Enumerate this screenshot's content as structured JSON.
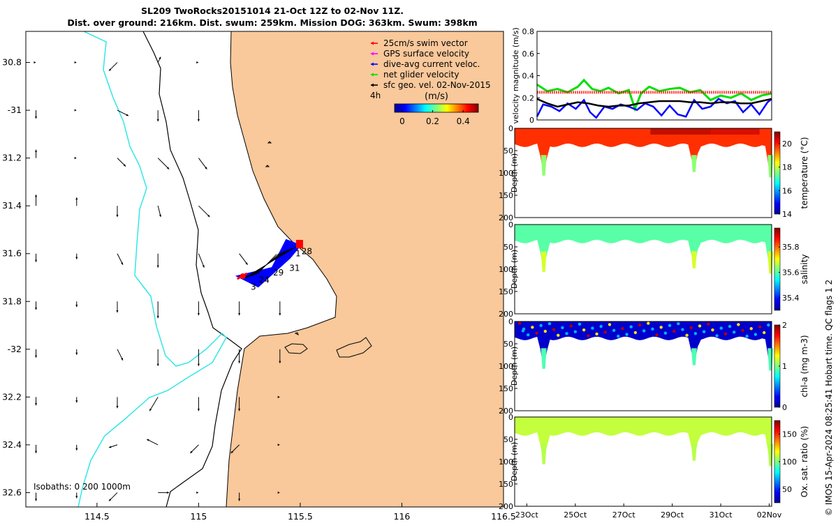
{
  "title_line1": "SL209 TwoRocks20151014 21-Oct 12Z to 02-Nov 11Z.",
  "title_line2": "Dist. over ground: 216km. Dist. swum: 259km. Mission DOG: 363km. Swum: 398km",
  "credit": "© IMOS 15-Apr-2024 08:25:41 Hobart time. QC flags 1  2",
  "colors": {
    "land": "#f9c89b",
    "isobath_0": "#000000",
    "isobath_200": "#000000",
    "isobath_1000": "#33e6e6",
    "track": "#0000ff",
    "swim_vector": "#ff0000",
    "gps_velocity": "#ff00ff",
    "dive_avg": "#0000ff",
    "net_glider": "#00e000",
    "sfc_geo": "#000000"
  },
  "chart_data": [
    {
      "type": "map",
      "xlim": [
        114.15,
        116.5
      ],
      "ylim": [
        -32.66,
        -30.67
      ],
      "x_ticks": [
        114.5,
        115,
        115.5,
        116,
        116.5
      ],
      "x_tick_labels": [
        "114.5",
        "115",
        "115.5",
        "116",
        "116.5"
      ],
      "y_ticks": [
        30.8,
        31,
        31.2,
        31.4,
        31.6,
        31.8,
        32,
        32.2,
        32.4,
        32.6
      ],
      "y_tick_labels": [
        "30.8",
        "-31",
        "31.2",
        "31.4",
        "31.6",
        "31.8",
        "-32",
        "32.2",
        "32.4",
        "32.6"
      ],
      "legend": {
        "placement": "top-right",
        "entries": [
          {
            "label": "25cm/s swim vector",
            "color": "#ff0000"
          },
          {
            "label": "GPS surface velocity",
            "color": "#ff00ff"
          },
          {
            "label": "dive-avg current veloc.",
            "color": "#0000ff"
          },
          {
            "label": "net glider velocity",
            "color": "#00e000"
          },
          {
            "label": "sfc geo. vel. 02-Nov-2015",
            "color": "#000000"
          }
        ],
        "colorbar_tag": "4h",
        "colorbar_title": "(m/s)",
        "colorbar_range": [
          -0.05,
          0.5
        ],
        "colorbar_ticks": [
          0,
          0.2,
          0.4
        ],
        "colorbar_tick_labels": [
          "0",
          "0.2",
          "0.4"
        ]
      },
      "isobaths_text": "Isobaths: 0   200  1000m",
      "track_day_labels": [
        {
          "text": "28",
          "lon": 115.52,
          "lat": -31.59
        },
        {
          "text": "1",
          "lon": 115.49,
          "lat": -31.6
        },
        {
          "text": "31",
          "lon": 115.46,
          "lat": -31.66
        },
        {
          "text": "29",
          "lon": 115.38,
          "lat": -31.68
        },
        {
          "text": "24",
          "lon": 115.31,
          "lat": -31.71
        },
        {
          "text": "3",
          "lon": 115.27,
          "lat": -31.74
        }
      ],
      "track_start": [
        115.19,
        -31.7
      ],
      "track_end": [
        115.5,
        -31.56
      ],
      "current_vectors": {
        "lons": [
          114.2,
          114.4,
          114.6,
          114.8,
          115.0,
          115.2,
          115.4
        ],
        "lats": [
          -30.8,
          -31.0,
          -31.2,
          -31.4,
          -31.6,
          -31.8,
          -32.0,
          -32.2,
          -32.4,
          -32.6
        ],
        "u_m_s": [
          [
            0.0,
            0.0,
            -0.03,
            0.01,
            0.0,
            0,
            0
          ],
          [
            0.0,
            0.0,
            0.04,
            0.0,
            0.0,
            0.0,
            0
          ],
          [
            0.0,
            0.0,
            0.03,
            0.04,
            0.03,
            0.03,
            0
          ],
          [
            0.0,
            0.0,
            0.0,
            0.01,
            0.04,
            0.04,
            0.05
          ],
          [
            0.0,
            0.0,
            0.02,
            0.0,
            0.02,
            0.03,
            0.02
          ],
          [
            0.0,
            0.0,
            0.0,
            0.0,
            0.0,
            0.0,
            0.0
          ],
          [
            0.0,
            0.0,
            0.02,
            0.0,
            0.0,
            0.0,
            0.0
          ],
          [
            0.0,
            0.0,
            0.0,
            -0.03,
            0.0,
            0.0,
            0
          ],
          [
            0.0,
            0.0,
            -0.03,
            -0.04,
            -0.03,
            -0.03,
            0
          ],
          [
            0.0,
            0.0,
            -0.03,
            0.04,
            0.0,
            0.0,
            0
          ]
        ],
        "v_m_s": [
          [
            0.0,
            0.0,
            -0.03,
            0.02,
            0.0,
            0,
            0
          ],
          [
            -0.03,
            0.0,
            -0.02,
            -0.04,
            -0.04,
            0.0,
            0
          ],
          [
            0.03,
            0.0,
            -0.03,
            -0.04,
            -0.04,
            -0.04,
            0
          ],
          [
            0.04,
            0.03,
            -0.04,
            -0.04,
            -0.04,
            -0.04,
            -0.04
          ],
          [
            -0.03,
            -0.02,
            -0.04,
            -0.05,
            -0.05,
            -0.04,
            -0.03
          ],
          [
            -0.03,
            -0.02,
            -0.04,
            -0.06,
            -0.05,
            -0.05,
            -0.05
          ],
          [
            -0.03,
            -0.02,
            -0.04,
            -0.06,
            -0.06,
            -0.05,
            -0.05
          ],
          [
            -0.03,
            -0.02,
            -0.04,
            -0.05,
            -0.05,
            -0.05,
            0
          ],
          [
            -0.03,
            -0.02,
            -0.01,
            0.02,
            -0.03,
            -0.03,
            0
          ],
          [
            -0.03,
            -0.02,
            -0.03,
            0.0,
            0.0,
            -0.03,
            0
          ]
        ]
      }
    },
    {
      "type": "line",
      "ylabel": "velocity magnitude (m/s)",
      "ylim": [
        0,
        0.8
      ],
      "y_ticks": [
        0,
        0.2,
        0.4,
        0.6,
        0.8
      ],
      "y_tick_labels": [
        "0",
        "0.2",
        "0.4",
        "0.6",
        "0.8"
      ],
      "x_range_days": [
        21.5,
        33.0
      ],
      "series": [
        {
          "name": "net glider velocity",
          "color": "#00e000",
          "x": [
            21.5,
            22.0,
            22.5,
            23.0,
            23.5,
            23.8,
            24.2,
            24.6,
            25.0,
            25.5,
            26.0,
            26.3,
            26.6,
            27.0,
            27.5,
            28.0,
            28.5,
            29.0,
            29.5,
            30.0,
            30.5,
            31.0,
            31.5,
            32.0,
            32.5,
            33.0
          ],
          "y": [
            0.32,
            0.26,
            0.28,
            0.25,
            0.3,
            0.36,
            0.28,
            0.26,
            0.29,
            0.24,
            0.27,
            0.1,
            0.24,
            0.3,
            0.26,
            0.28,
            0.29,
            0.25,
            0.27,
            0.18,
            0.22,
            0.2,
            0.24,
            0.18,
            0.22,
            0.24
          ]
        },
        {
          "name": "25cm/s swim vector",
          "color": "#ff0000",
          "x": [
            21.5,
            33.0
          ],
          "y": [
            0.25,
            0.25
          ]
        },
        {
          "name": "dive-avg current veloc.",
          "color": "#0000ff",
          "x": [
            21.5,
            21.8,
            22.2,
            22.6,
            23.0,
            23.4,
            23.8,
            24.1,
            24.4,
            24.8,
            25.2,
            25.6,
            26.0,
            26.4,
            26.8,
            27.2,
            27.6,
            28.0,
            28.4,
            28.8,
            29.2,
            29.6,
            30.0,
            30.4,
            30.8,
            31.2,
            31.6,
            32.0,
            32.4,
            32.8,
            33.0
          ],
          "y": [
            0.03,
            0.14,
            0.12,
            0.08,
            0.15,
            0.1,
            0.18,
            0.07,
            0.02,
            0.12,
            0.1,
            0.14,
            0.12,
            0.09,
            0.15,
            0.12,
            0.04,
            0.13,
            0.05,
            0.03,
            0.18,
            0.1,
            0.12,
            0.19,
            0.15,
            0.17,
            0.07,
            0.14,
            0.05,
            0.16,
            0.19
          ]
        },
        {
          "name": "sfc geo. vel.",
          "color": "#000000",
          "x": [
            21.5,
            22.0,
            22.5,
            23.0,
            23.5,
            24.0,
            24.5,
            25.0,
            25.5,
            26.0,
            26.5,
            27.0,
            27.5,
            28.0,
            28.5,
            29.0,
            29.5,
            30.0,
            30.5,
            31.0,
            31.5,
            32.0,
            32.5,
            33.0
          ],
          "y": [
            0.19,
            0.15,
            0.12,
            0.14,
            0.16,
            0.15,
            0.13,
            0.12,
            0.13,
            0.13,
            0.15,
            0.16,
            0.17,
            0.17,
            0.17,
            0.16,
            0.16,
            0.15,
            0.16,
            0.16,
            0.15,
            0.15,
            0.17,
            0.19
          ]
        }
      ]
    },
    {
      "type": "heatmap",
      "ylabel": "Depth (m)",
      "colorbar_label": "temperature (°C)",
      "ylim": [
        200,
        0
      ],
      "y_ticks": [
        0,
        50,
        100,
        150,
        200
      ],
      "y_tick_labels": [
        "0",
        "50",
        "100",
        "150",
        "200"
      ],
      "clim": [
        14,
        21
      ],
      "colorbar_ticks": [
        14,
        16,
        18,
        20
      ],
      "colorbar_tick_labels": [
        "14",
        "16",
        "18",
        "20"
      ],
      "surface_value": 19.8,
      "deep_value": 17.6,
      "hot_patches": [
        [
          28.0,
          30.5,
          20.7
        ],
        [
          30.5,
          32.5,
          20.5
        ]
      ]
    },
    {
      "type": "heatmap",
      "ylabel": "Depth (m)",
      "colorbar_label": "salinity",
      "ylim": [
        200,
        0
      ],
      "y_ticks": [
        0,
        50,
        100,
        150,
        200
      ],
      "y_tick_labels": [
        "0",
        "50",
        "100",
        "150",
        "200"
      ],
      "clim": [
        35.3,
        35.95
      ],
      "colorbar_ticks": [
        35.4,
        35.6,
        35.8
      ],
      "colorbar_tick_labels": [
        "35.4",
        "35.6",
        "35.8"
      ],
      "surface_value": 35.6,
      "deep_value": 35.68,
      "hot_patches": []
    },
    {
      "type": "heatmap",
      "ylabel": "Depth (m)",
      "colorbar_label": "chl-a (mg m-3)",
      "ylim": [
        200,
        0
      ],
      "y_ticks": [
        0,
        50,
        100,
        150,
        200
      ],
      "y_tick_labels": [
        "0",
        "50",
        "100",
        "150",
        "200"
      ],
      "clim": [
        0,
        2
      ],
      "colorbar_ticks": [
        0,
        1,
        2
      ],
      "colorbar_tick_labels": [
        "0",
        "1",
        "2"
      ],
      "surface_value": 0.15,
      "deep_value": 0.9,
      "hot_patches": []
    },
    {
      "type": "heatmap",
      "ylabel": "Depth (m)",
      "colorbar_label": "Ox. sat. ratio (%)",
      "ylim": [
        200,
        0
      ],
      "y_ticks": [
        0,
        50,
        100,
        150,
        200
      ],
      "y_tick_labels": [
        "0",
        "50",
        "100",
        "150",
        "200"
      ],
      "clim": [
        25,
        175
      ],
      "colorbar_ticks": [
        50,
        100,
        150
      ],
      "colorbar_tick_labels": [
        "50",
        "100",
        "150"
      ],
      "surface_value": 110,
      "deep_value": 108,
      "hot_patches": [],
      "x_ticks_days": [
        23,
        25,
        27,
        29,
        31,
        33
      ],
      "x_tick_labels": [
        "23Oct",
        "25Oct",
        "27Oct",
        "29Oct",
        "31Oct",
        "02Nov"
      ]
    }
  ]
}
